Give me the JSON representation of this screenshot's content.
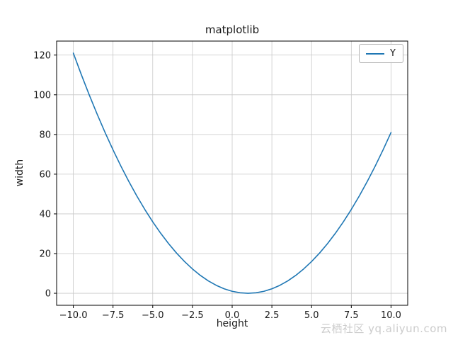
{
  "figure": {
    "background": "#ffffff"
  },
  "chart_data": {
    "type": "line",
    "title": "matplotlib",
    "xlabel": "height",
    "ylabel": "width",
    "grid": true,
    "grid_color": "#c8c8c8",
    "spine_color": "#000000",
    "legend": {
      "position": "upper right",
      "entries": [
        "Y"
      ]
    },
    "xlim": [
      -11.05,
      11.05
    ],
    "ylim": [
      -6.05,
      127.05
    ],
    "xticks": [
      -10,
      -7.5,
      -5,
      -2.5,
      0,
      2.5,
      5,
      7.5,
      10
    ],
    "xtick_labels": [
      "−10.0",
      "−7.5",
      "−5.0",
      "−2.5",
      "0.0",
      "2.5",
      "5.0",
      "7.5",
      "10.0"
    ],
    "yticks": [
      0,
      20,
      40,
      60,
      80,
      100,
      120
    ],
    "ytick_labels": [
      "0",
      "20",
      "40",
      "60",
      "80",
      "100",
      "120"
    ],
    "series": [
      {
        "name": "Y",
        "color": "#1f77b4",
        "x": [
          -10,
          -9.5,
          -9,
          -8.5,
          -8,
          -7.5,
          -7,
          -6.5,
          -6,
          -5.5,
          -5,
          -4.5,
          -4,
          -3.5,
          -3,
          -2.5,
          -2,
          -1.5,
          -1,
          -0.5,
          0,
          0.5,
          1,
          1.5,
          2,
          2.5,
          3,
          3.5,
          4,
          4.5,
          5,
          5.5,
          6,
          6.5,
          7,
          7.5,
          8,
          8.5,
          9,
          9.5,
          10
        ],
        "y": [
          121,
          110.25,
          100,
          90.25,
          81,
          72.25,
          64,
          56.25,
          49,
          42.25,
          36,
          30.25,
          25,
          20.25,
          16,
          12.25,
          9,
          6.25,
          4,
          2.25,
          1,
          0.25,
          0,
          0.25,
          1,
          2.25,
          4,
          6.25,
          9,
          12.25,
          16,
          20.25,
          25,
          30.25,
          36,
          42.25,
          49,
          56.25,
          64,
          72.25,
          81
        ]
      }
    ]
  },
  "watermark": {
    "text": "云栖社区 yq.aliyun.com",
    "color": "#cccccc"
  }
}
